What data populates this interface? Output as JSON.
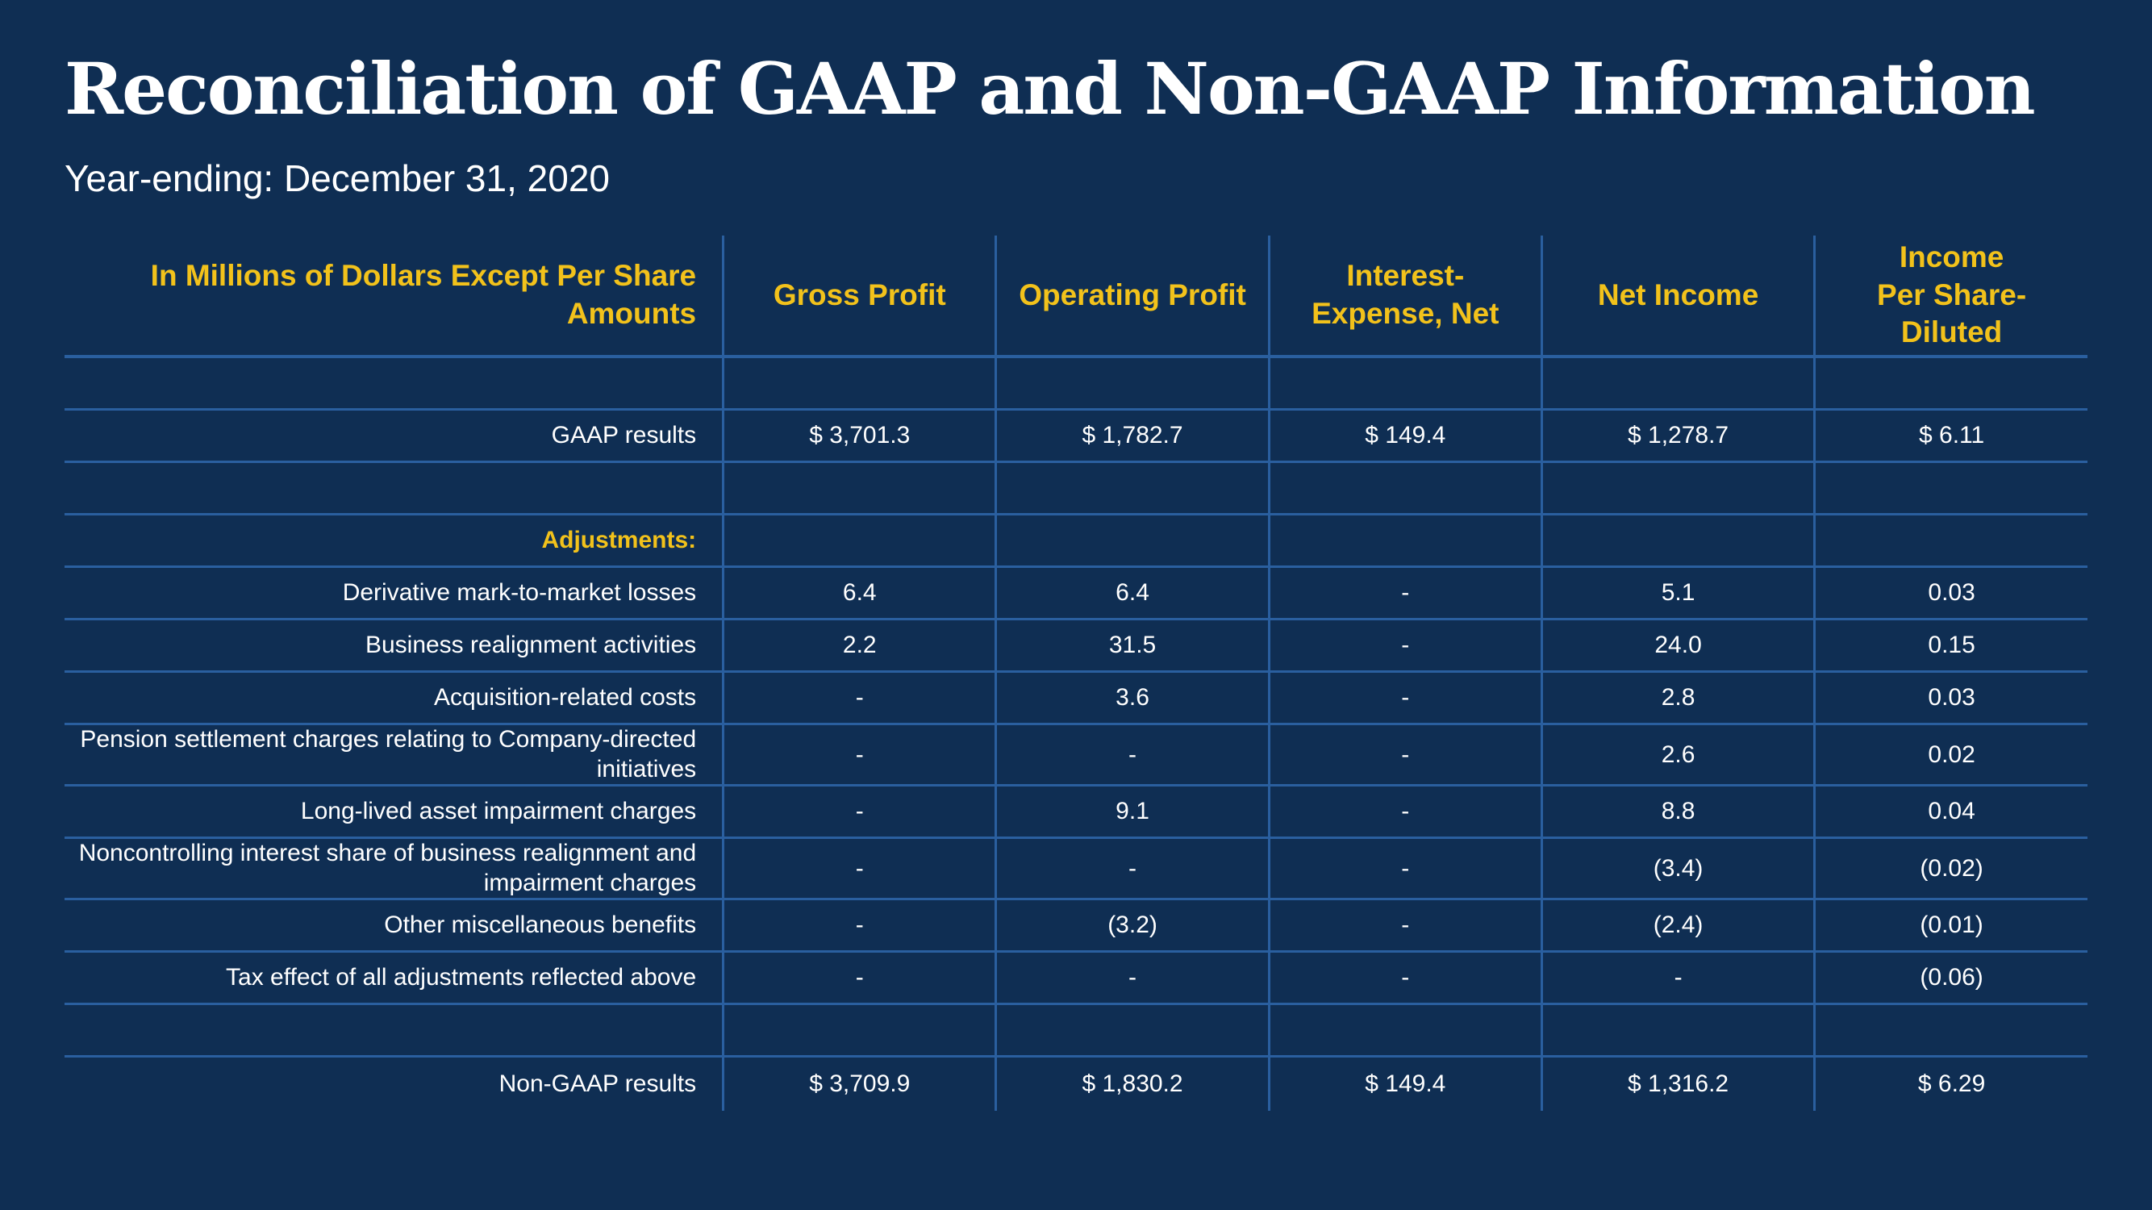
{
  "title": "Reconciliation of GAAP and Non-GAAP Information",
  "subtitle": "Year-ending: December 31, 2020",
  "table": {
    "headers": [
      "In Millions of Dollars Except Per Share Amounts",
      "Gross Profit",
      "Operating Profit",
      "Interest-\nExpense, Net",
      "Net Income",
      "Income\nPer Share-\nDiluted"
    ],
    "rows": [
      {
        "type": "blank",
        "cells": [
          "",
          "",
          "",
          "",
          "",
          ""
        ]
      },
      {
        "type": "data",
        "cells": [
          "GAAP results",
          "$ 3,701.3",
          "$ 1,782.7",
          "$ 149.4",
          "$ 1,278.7",
          "$ 6.11"
        ]
      },
      {
        "type": "blank",
        "cells": [
          "",
          "",
          "",
          "",
          "",
          ""
        ]
      },
      {
        "type": "section",
        "cells": [
          "Adjustments:",
          "",
          "",
          "",
          "",
          ""
        ]
      },
      {
        "type": "data",
        "cells": [
          "Derivative mark-to-market losses",
          "6.4",
          "6.4",
          "-",
          "5.1",
          "0.03"
        ]
      },
      {
        "type": "data",
        "cells": [
          "Business realignment activities",
          "2.2",
          "31.5",
          "-",
          "24.0",
          "0.15"
        ]
      },
      {
        "type": "data",
        "cells": [
          "Acquisition-related costs",
          "-",
          "3.6",
          "-",
          "2.8",
          "0.03"
        ]
      },
      {
        "type": "tall",
        "cells": [
          "Pension settlement charges relating to Company-directed initiatives",
          "-",
          "-",
          "-",
          "2.6",
          "0.02"
        ]
      },
      {
        "type": "data",
        "cells": [
          "Long-lived asset impairment charges",
          "-",
          "9.1",
          "-",
          "8.8",
          "0.04"
        ]
      },
      {
        "type": "tall",
        "cells": [
          "Noncontrolling interest share of business realignment and impairment charges",
          "-",
          "-",
          "-",
          "(3.4)",
          "(0.02)"
        ]
      },
      {
        "type": "data",
        "cells": [
          "Other miscellaneous benefits",
          "-",
          "(3.2)",
          "-",
          "(2.4)",
          "(0.01)"
        ]
      },
      {
        "type": "data",
        "cells": [
          "Tax effect of all adjustments reflected above",
          "-",
          "-",
          "-",
          "-",
          "(0.06)"
        ]
      },
      {
        "type": "blank",
        "cells": [
          "",
          "",
          "",
          "",
          "",
          ""
        ]
      },
      {
        "type": "last",
        "cells": [
          "Non-GAAP results",
          "$ 3,709.9",
          "$ 1,830.2",
          "$ 149.4",
          "$ 1,316.2",
          "$ 6.29"
        ]
      }
    ]
  }
}
